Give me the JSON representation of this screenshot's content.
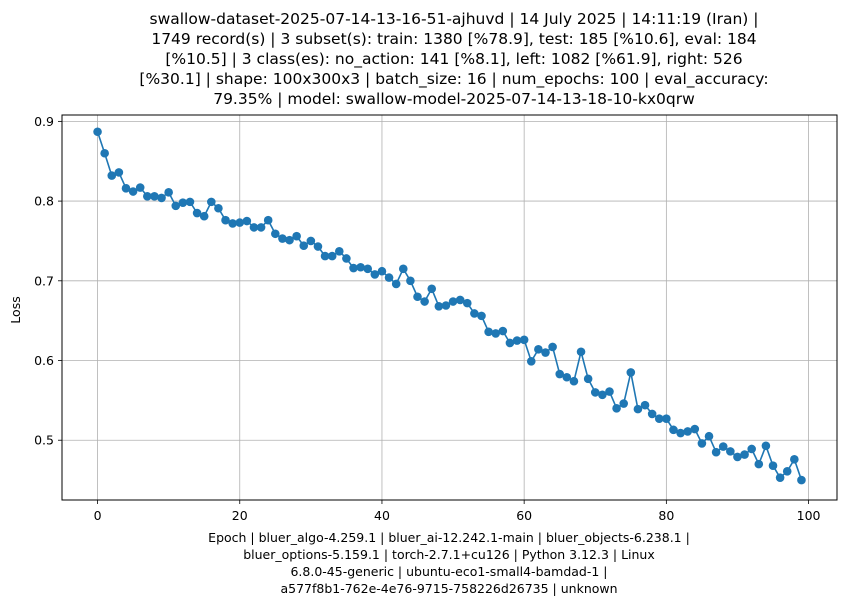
{
  "chart_data": {
    "type": "line",
    "title_lines": [
      "swallow-dataset-2025-07-14-13-16-51-ajhuvd | 14 July 2025 | 14:11:19 (Iran) |",
      "1749 record(s) | 3 subset(s): train: 1380 [%78.9], test: 185 [%10.6], eval: 184",
      "[%10.5] | 3 class(es): no_action: 141 [%8.1], left: 1082 [%61.9], right: 526",
      "[%30.1] | shape: 100x300x3 | batch_size: 16 | num_epochs: 100 | eval_accuracy:",
      "79.35% | model: swallow-model-2025-07-14-13-18-10-kx0qrw"
    ],
    "xlabel_lines": [
      "Epoch | bluer_algo-4.259.1 | bluer_ai-12.242.1-main | bluer_objects-6.238.1 |",
      "bluer_options-5.159.1 | torch-2.7.1+cu126 | Python 3.12.3 | Linux",
      "6.8.0-45-generic | ubuntu-eco1-small4-bamdad-1 |",
      "a577f8b1-762e-4e76-9715-758226d26735 | unknown"
    ],
    "ylabel": "Loss",
    "xlim": [
      -5,
      104
    ],
    "ylim": [
      0.425,
      0.908
    ],
    "xticks": [
      0,
      20,
      40,
      60,
      80,
      100
    ],
    "xtick_labels": [
      "0",
      "20",
      "40",
      "60",
      "80",
      "100"
    ],
    "yticks": [
      0.5,
      0.6,
      0.7,
      0.8,
      0.9
    ],
    "ytick_labels": [
      "0.5",
      "0.6",
      "0.7",
      "0.8",
      "0.9"
    ],
    "grid": true,
    "line_color": "#1f77b4",
    "x": [
      0,
      1,
      2,
      3,
      4,
      5,
      6,
      7,
      8,
      9,
      10,
      11,
      12,
      13,
      14,
      15,
      16,
      17,
      18,
      19,
      20,
      21,
      22,
      23,
      24,
      25,
      26,
      27,
      28,
      29,
      30,
      31,
      32,
      33,
      34,
      35,
      36,
      37,
      38,
      39,
      40,
      41,
      42,
      43,
      44,
      45,
      46,
      47,
      48,
      49,
      50,
      51,
      52,
      53,
      54,
      55,
      56,
      57,
      58,
      59,
      60,
      61,
      62,
      63,
      64,
      65,
      66,
      67,
      68,
      69,
      70,
      71,
      72,
      73,
      74,
      75,
      76,
      77,
      78,
      79,
      80,
      81,
      82,
      83,
      84,
      85,
      86,
      87,
      88,
      89,
      90,
      91,
      92,
      93,
      94,
      95,
      96,
      97,
      98,
      99
    ],
    "y": [
      0.887,
      0.86,
      0.832,
      0.836,
      0.816,
      0.812,
      0.817,
      0.806,
      0.806,
      0.804,
      0.811,
      0.794,
      0.798,
      0.799,
      0.785,
      0.781,
      0.799,
      0.791,
      0.776,
      0.772,
      0.773,
      0.775,
      0.767,
      0.767,
      0.776,
      0.759,
      0.753,
      0.751,
      0.756,
      0.744,
      0.75,
      0.743,
      0.731,
      0.731,
      0.737,
      0.728,
      0.716,
      0.717,
      0.715,
      0.708,
      0.712,
      0.704,
      0.696,
      0.715,
      0.7,
      0.68,
      0.674,
      0.69,
      0.668,
      0.669,
      0.674,
      0.676,
      0.672,
      0.659,
      0.656,
      0.636,
      0.634,
      0.637,
      0.622,
      0.625,
      0.626,
      0.599,
      0.614,
      0.61,
      0.617,
      0.583,
      0.579,
      0.574,
      0.611,
      0.577,
      0.56,
      0.557,
      0.561,
      0.54,
      0.546,
      0.585,
      0.539,
      0.544,
      0.533,
      0.527,
      0.527,
      0.513,
      0.509,
      0.511,
      0.514,
      0.496,
      0.505,
      0.485,
      0.492,
      0.486,
      0.479,
      0.482,
      0.489,
      0.47,
      0.493,
      0.468,
      0.453,
      0.461,
      0.476,
      0.45
    ]
  }
}
